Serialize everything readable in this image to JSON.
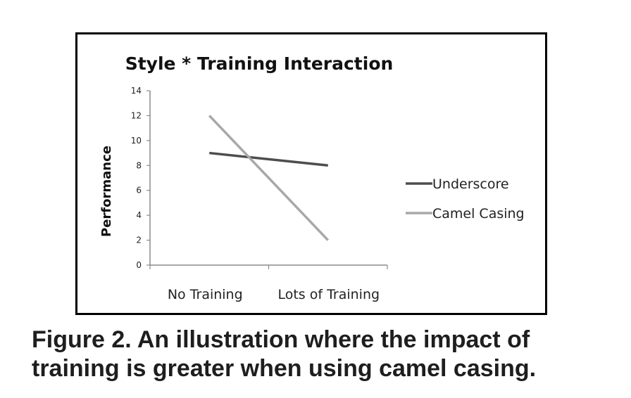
{
  "chart_data": {
    "type": "line",
    "title": "Style * Training Interaction",
    "xlabel": "",
    "ylabel": "Performance",
    "categories": [
      "No Training",
      "Lots of Training"
    ],
    "ylim": [
      0,
      14
    ],
    "yticks": [
      0,
      2,
      4,
      6,
      8,
      10,
      12,
      14
    ],
    "grid": false,
    "legend_position": "right",
    "series": [
      {
        "name": "Underscore",
        "values": [
          9,
          8
        ],
        "color": "#4d4d4d"
      },
      {
        "name": "Camel Casing",
        "values": [
          12,
          2
        ],
        "color": "#a8a8a8"
      }
    ]
  },
  "caption": {
    "line1": "Figure 2. An illustration where the impact of",
    "line2": "training is greater when using camel casing."
  }
}
